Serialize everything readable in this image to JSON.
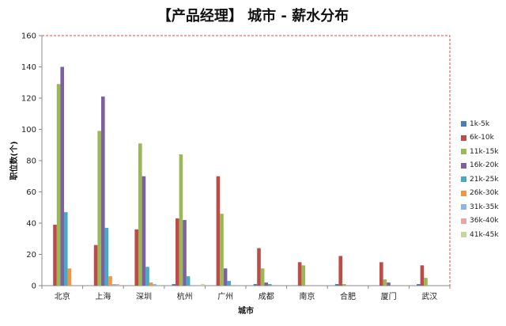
{
  "chart_data": {
    "type": "bar",
    "title": "【产品经理】 城市 - 薪水分布",
    "xlabel": "城市",
    "ylabel": "职位数(个)",
    "ylim": [
      0,
      160
    ],
    "yticks": [
      0,
      20,
      40,
      60,
      80,
      100,
      120,
      140,
      160
    ],
    "grid": false,
    "legend_position": "right",
    "categories": [
      "北京",
      "上海",
      "深圳",
      "杭州",
      "广州",
      "成都",
      "南京",
      "合肥",
      "厦门",
      "武汉"
    ],
    "series": [
      {
        "name": "1k-5k",
        "color": "#4a7ebb",
        "values": [
          0,
          0,
          0,
          1,
          0,
          1,
          0,
          1,
          0,
          1
        ]
      },
      {
        "name": "6k-10k",
        "color": "#be4b48",
        "values": [
          39,
          26,
          36,
          43,
          70,
          24,
          15,
          19,
          15,
          13
        ]
      },
      {
        "name": "11k-15k",
        "color": "#98b954",
        "values": [
          129,
          99,
          91,
          84,
          46,
          11,
          13,
          1,
          4,
          5
        ]
      },
      {
        "name": "16k-20k",
        "color": "#7d60a0",
        "values": [
          140,
          121,
          70,
          42,
          11,
          2,
          0,
          0,
          2,
          0
        ]
      },
      {
        "name": "21k-25k",
        "color": "#46aac5",
        "values": [
          47,
          37,
          12,
          6,
          3,
          1,
          0,
          0,
          0,
          0
        ]
      },
      {
        "name": "26k-30k",
        "color": "#f69240",
        "values": [
          11,
          6,
          2,
          0,
          0,
          0,
          0,
          0,
          0,
          0
        ]
      },
      {
        "name": "31k-35k",
        "color": "#8eb4e3",
        "values": [
          0,
          1,
          1,
          0,
          0,
          0,
          0,
          0,
          0,
          0
        ]
      },
      {
        "name": "36k-40k",
        "color": "#e6a6a4",
        "values": [
          0,
          1,
          0,
          0,
          0,
          0,
          0,
          0,
          0,
          0
        ]
      },
      {
        "name": "41k-45k",
        "color": "#c3d69b",
        "values": [
          0,
          0,
          0,
          1,
          0,
          0,
          0,
          0,
          0,
          0
        ]
      }
    ]
  }
}
